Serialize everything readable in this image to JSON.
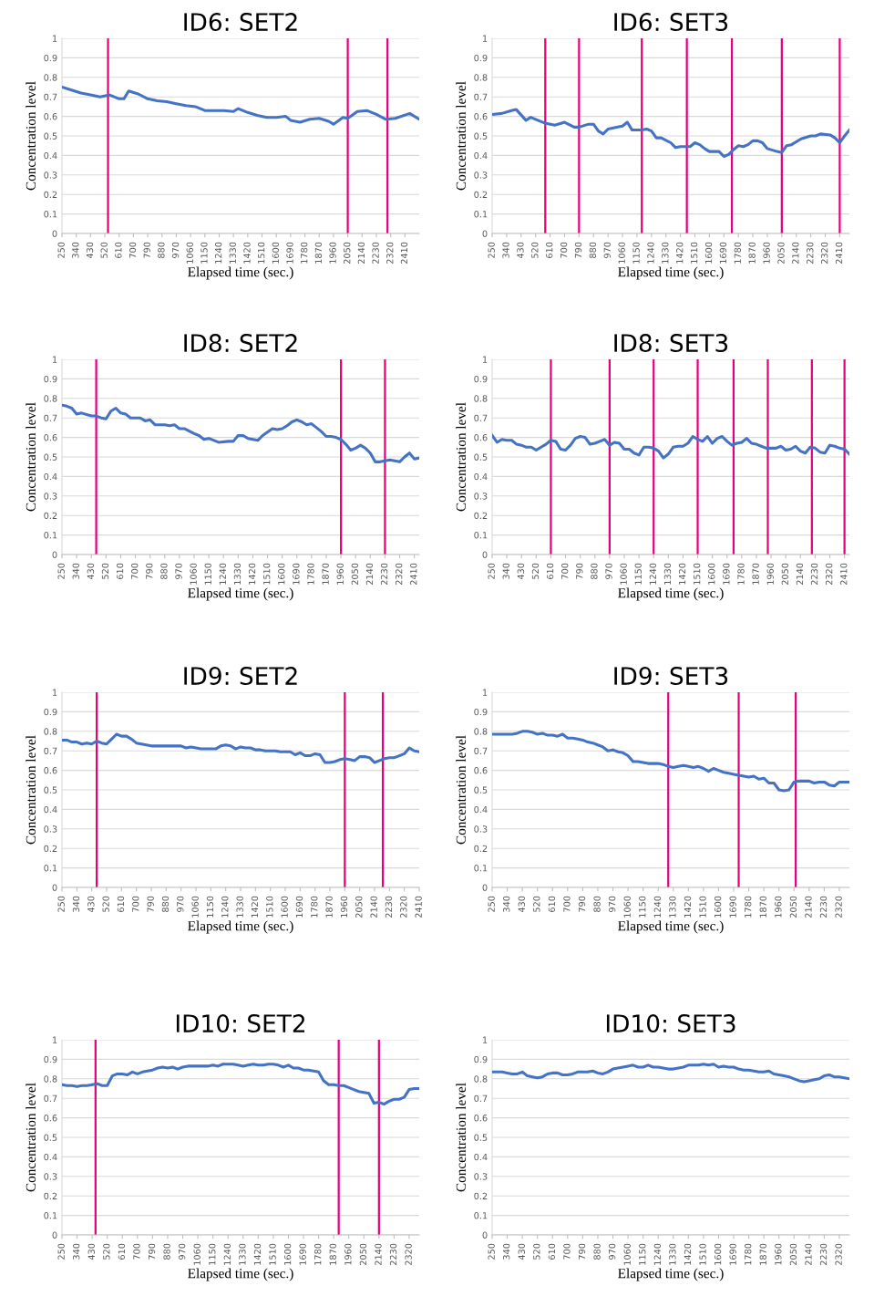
{
  "chart_data": [
    {
      "type": "line",
      "title": "ID6: SET2",
      "xlabel": "Elapsed time (sec.)",
      "ylabel": "Concentration level",
      "grid": "y",
      "xlim": [
        250,
        2500
      ],
      "ylim": [
        0,
        1
      ],
      "xticks": [
        250,
        340,
        430,
        520,
        610,
        700,
        790,
        880,
        970,
        1060,
        1150,
        1240,
        1330,
        1420,
        1510,
        1600,
        1690,
        1780,
        1870,
        1960,
        2050,
        2140,
        2230,
        2320,
        2410
      ],
      "yticks": [
        0,
        0.1,
        0.2,
        0.3,
        0.4,
        0.5,
        0.6,
        0.7,
        0.8,
        0.9,
        1
      ],
      "x": [
        250,
        310,
        370,
        430,
        490,
        550,
        610,
        640,
        670,
        730,
        790,
        850,
        910,
        970,
        1030,
        1090,
        1150,
        1210,
        1270,
        1330,
        1360,
        1420,
        1480,
        1540,
        1600,
        1660,
        1690,
        1750,
        1810,
        1870,
        1930,
        1960,
        2020,
        2050,
        2110,
        2170,
        2230,
        2290,
        2350,
        2440,
        2500
      ],
      "series": [
        {
          "color": "#4472c4",
          "values": [
            0.75,
            0.735,
            0.72,
            0.71,
            0.7,
            0.71,
            0.69,
            0.69,
            0.73,
            0.715,
            0.69,
            0.68,
            0.675,
            0.665,
            0.655,
            0.65,
            0.63,
            0.63,
            0.63,
            0.625,
            0.64,
            0.62,
            0.605,
            0.595,
            0.595,
            0.6,
            0.58,
            0.57,
            0.585,
            0.59,
            0.575,
            0.56,
            0.595,
            0.59,
            0.625,
            0.63,
            0.61,
            0.585,
            0.59,
            0.615,
            0.585
          ]
        }
      ],
      "ref_lines": [
        {
          "axis": "x",
          "value": 540,
          "color": "#e6007e"
        },
        {
          "axis": "x",
          "value": 2050,
          "color": "#e6007e"
        },
        {
          "axis": "x",
          "value": 2300,
          "color": "#e6007e"
        }
      ]
    },
    {
      "type": "line",
      "title": "ID6: SET3",
      "xlabel": "Elapsed time (sec.)",
      "ylabel": "Concentration level",
      "grid": "y",
      "xlim": [
        250,
        2470
      ],
      "ylim": [
        0,
        1
      ],
      "xticks": [
        250,
        340,
        430,
        520,
        610,
        700,
        790,
        880,
        970,
        1060,
        1150,
        1240,
        1330,
        1420,
        1510,
        1600,
        1690,
        1780,
        1870,
        1960,
        2050,
        2140,
        2230,
        2320,
        2410
      ],
      "yticks": [
        0,
        0.1,
        0.2,
        0.3,
        0.4,
        0.5,
        0.6,
        0.7,
        0.8,
        0.9,
        1
      ],
      "x": [
        250,
        310,
        370,
        400,
        460,
        490,
        520,
        580,
        640,
        700,
        760,
        790,
        850,
        880,
        910,
        940,
        970,
        1030,
        1060,
        1090,
        1120,
        1180,
        1210,
        1240,
        1270,
        1300,
        1360,
        1390,
        1420,
        1480,
        1510,
        1540,
        1570,
        1600,
        1660,
        1690,
        1720,
        1750,
        1780,
        1810,
        1840,
        1870,
        1900,
        1930,
        1960,
        2020,
        2050,
        2080,
        2110,
        2170,
        2230,
        2260,
        2290,
        2350,
        2380,
        2410,
        2440,
        2470
      ],
      "series": [
        {
          "color": "#4472c4",
          "values": [
            0.61,
            0.615,
            0.63,
            0.635,
            0.58,
            0.595,
            0.585,
            0.565,
            0.555,
            0.57,
            0.545,
            0.545,
            0.56,
            0.56,
            0.525,
            0.51,
            0.535,
            0.545,
            0.55,
            0.57,
            0.53,
            0.53,
            0.535,
            0.525,
            0.49,
            0.49,
            0.465,
            0.44,
            0.445,
            0.445,
            0.465,
            0.455,
            0.435,
            0.42,
            0.42,
            0.395,
            0.405,
            0.43,
            0.45,
            0.445,
            0.455,
            0.475,
            0.475,
            0.465,
            0.435,
            0.42,
            0.415,
            0.45,
            0.455,
            0.485,
            0.5,
            0.5,
            0.51,
            0.505,
            0.49,
            0.465,
            0.5,
            0.53
          ]
        }
      ],
      "ref_lines": [
        {
          "axis": "x",
          "value": 580,
          "color": "#e6007e"
        },
        {
          "axis": "x",
          "value": 790,
          "color": "#e6007e"
        },
        {
          "axis": "x",
          "value": 1180,
          "color": "#e6007e"
        },
        {
          "axis": "x",
          "value": 1460,
          "color": "#e6007e"
        },
        {
          "axis": "x",
          "value": 1740,
          "color": "#e6007e"
        },
        {
          "axis": "x",
          "value": 2050,
          "color": "#e6007e"
        },
        {
          "axis": "x",
          "value": 2410,
          "color": "#e6007e"
        }
      ]
    },
    {
      "type": "line",
      "title": "ID8: SET2",
      "xlabel": "Elapsed time (sec.)",
      "ylabel": "Concentration level",
      "grid": "y",
      "xlim": [
        250,
        2440
      ],
      "ylim": [
        0,
        1
      ],
      "xticks": [
        250,
        340,
        430,
        520,
        610,
        700,
        790,
        880,
        970,
        1060,
        1150,
        1240,
        1330,
        1420,
        1510,
        1600,
        1690,
        1780,
        1870,
        1960,
        2050,
        2140,
        2230,
        2320,
        2410
      ],
      "yticks": [
        0,
        0.1,
        0.2,
        0.3,
        0.4,
        0.5,
        0.6,
        0.7,
        0.8,
        0.9,
        1
      ],
      "x": [
        250,
        280,
        310,
        340,
        370,
        430,
        460,
        490,
        520,
        550,
        580,
        610,
        640,
        670,
        730,
        760,
        790,
        820,
        850,
        880,
        910,
        940,
        970,
        1000,
        1060,
        1090,
        1120,
        1150,
        1210,
        1270,
        1300,
        1330,
        1360,
        1390,
        1450,
        1480,
        1540,
        1570,
        1600,
        1630,
        1660,
        1690,
        1720,
        1750,
        1780,
        1810,
        1840,
        1870,
        1900,
        1930,
        1960,
        1990,
        2020,
        2050,
        2080,
        2110,
        2140,
        2170,
        2200,
        2230,
        2260,
        2320,
        2350,
        2380,
        2410,
        2440
      ],
      "series": [
        {
          "color": "#4472c4",
          "values": [
            0.765,
            0.76,
            0.75,
            0.72,
            0.725,
            0.71,
            0.71,
            0.7,
            0.695,
            0.735,
            0.75,
            0.725,
            0.72,
            0.7,
            0.7,
            0.685,
            0.69,
            0.665,
            0.665,
            0.665,
            0.66,
            0.665,
            0.645,
            0.645,
            0.62,
            0.61,
            0.59,
            0.595,
            0.575,
            0.58,
            0.58,
            0.61,
            0.61,
            0.595,
            0.585,
            0.61,
            0.645,
            0.64,
            0.645,
            0.66,
            0.68,
            0.69,
            0.68,
            0.665,
            0.67,
            0.65,
            0.63,
            0.605,
            0.605,
            0.6,
            0.59,
            0.565,
            0.535,
            0.545,
            0.56,
            0.545,
            0.52,
            0.475,
            0.475,
            0.48,
            0.485,
            0.475,
            0.5,
            0.52,
            0.49,
            0.495
          ]
        }
      ],
      "ref_lines": [
        {
          "axis": "x",
          "value": 460,
          "color": "#e6007e"
        },
        {
          "axis": "x",
          "value": 1960,
          "color": "#e6007e"
        },
        {
          "axis": "x",
          "value": 2230,
          "color": "#e6007e"
        }
      ]
    },
    {
      "type": "line",
      "title": "ID8: SET3",
      "xlabel": "Elapsed time (sec.)",
      "ylabel": "Concentration level",
      "grid": "y",
      "xlim": [
        250,
        2440
      ],
      "ylim": [
        0,
        1
      ],
      "xticks": [
        250,
        340,
        430,
        520,
        610,
        700,
        790,
        880,
        970,
        1060,
        1150,
        1240,
        1330,
        1420,
        1510,
        1600,
        1690,
        1780,
        1870,
        1960,
        2050,
        2140,
        2230,
        2320,
        2410
      ],
      "yticks": [
        0,
        0.1,
        0.2,
        0.3,
        0.4,
        0.5,
        0.6,
        0.7,
        0.8,
        0.9,
        1
      ],
      "x": [
        250,
        280,
        310,
        340,
        370,
        400,
        430,
        460,
        490,
        520,
        550,
        580,
        610,
        640,
        670,
        700,
        730,
        760,
        790,
        820,
        850,
        880,
        910,
        940,
        970,
        1000,
        1030,
        1060,
        1090,
        1120,
        1150,
        1180,
        1210,
        1240,
        1270,
        1300,
        1330,
        1360,
        1390,
        1420,
        1450,
        1480,
        1510,
        1540,
        1570,
        1600,
        1630,
        1660,
        1690,
        1720,
        1750,
        1780,
        1810,
        1840,
        1870,
        1900,
        1930,
        1960,
        1990,
        2020,
        2050,
        2080,
        2110,
        2140,
        2170,
        2200,
        2230,
        2260,
        2290,
        2320,
        2350,
        2380,
        2410,
        2440
      ],
      "series": [
        {
          "color": "#4472c4",
          "values": [
            0.61,
            0.575,
            0.59,
            0.585,
            0.585,
            0.565,
            0.56,
            0.55,
            0.55,
            0.535,
            0.55,
            0.565,
            0.585,
            0.58,
            0.54,
            0.535,
            0.56,
            0.595,
            0.605,
            0.6,
            0.565,
            0.57,
            0.58,
            0.59,
            0.56,
            0.575,
            0.57,
            0.54,
            0.54,
            0.52,
            0.51,
            0.55,
            0.55,
            0.545,
            0.53,
            0.495,
            0.515,
            0.55,
            0.555,
            0.555,
            0.57,
            0.605,
            0.59,
            0.58,
            0.605,
            0.57,
            0.595,
            0.605,
            0.58,
            0.56,
            0.57,
            0.575,
            0.595,
            0.57,
            0.565,
            0.555,
            0.545,
            0.545,
            0.545,
            0.555,
            0.535,
            0.54,
            0.555,
            0.53,
            0.52,
            0.55,
            0.545,
            0.525,
            0.52,
            0.56,
            0.555,
            0.545,
            0.54,
            0.515
          ]
        }
      ],
      "ref_lines": [
        {
          "axis": "x",
          "value": 610,
          "color": "#e6007e"
        },
        {
          "axis": "x",
          "value": 970,
          "color": "#e6007e"
        },
        {
          "axis": "x",
          "value": 1240,
          "color": "#e6007e"
        },
        {
          "axis": "x",
          "value": 1510,
          "color": "#e6007e"
        },
        {
          "axis": "x",
          "value": 1730,
          "color": "#e6007e"
        },
        {
          "axis": "x",
          "value": 1940,
          "color": "#e6007e"
        },
        {
          "axis": "x",
          "value": 2210,
          "color": "#e6007e"
        },
        {
          "axis": "x",
          "value": 2410,
          "color": "#e6007e"
        }
      ]
    },
    {
      "type": "line",
      "title": "ID9: SET2",
      "xlabel": "Elapsed time (sec.)",
      "ylabel": "Concentration level",
      "grid": "y",
      "xlim": [
        250,
        2410
      ],
      "ylim": [
        0,
        1
      ],
      "xticks": [
        250,
        340,
        430,
        520,
        610,
        700,
        790,
        880,
        970,
        1060,
        1150,
        1240,
        1330,
        1420,
        1510,
        1600,
        1690,
        1780,
        1870,
        1960,
        2050,
        2140,
        2230,
        2320,
        2410
      ],
      "yticks": [
        0,
        0.1,
        0.2,
        0.3,
        0.4,
        0.5,
        0.6,
        0.7,
        0.8,
        0.9,
        1
      ],
      "x": [
        250,
        280,
        310,
        340,
        370,
        400,
        430,
        460,
        490,
        520,
        550,
        580,
        610,
        640,
        670,
        700,
        730,
        760,
        790,
        850,
        910,
        970,
        1000,
        1030,
        1060,
        1090,
        1150,
        1180,
        1210,
        1240,
        1270,
        1300,
        1330,
        1360,
        1390,
        1420,
        1450,
        1480,
        1540,
        1570,
        1600,
        1630,
        1660,
        1690,
        1720,
        1750,
        1780,
        1810,
        1840,
        1870,
        1900,
        1930,
        1960,
        1990,
        2020,
        2050,
        2080,
        2110,
        2140,
        2170,
        2200,
        2230,
        2260,
        2290,
        2320,
        2350,
        2380,
        2410
      ],
      "series": [
        {
          "color": "#4472c4",
          "values": [
            0.755,
            0.755,
            0.745,
            0.745,
            0.735,
            0.74,
            0.735,
            0.75,
            0.74,
            0.735,
            0.76,
            0.785,
            0.775,
            0.775,
            0.76,
            0.74,
            0.735,
            0.73,
            0.725,
            0.725,
            0.725,
            0.725,
            0.715,
            0.72,
            0.715,
            0.71,
            0.71,
            0.71,
            0.725,
            0.73,
            0.725,
            0.71,
            0.72,
            0.715,
            0.715,
            0.705,
            0.705,
            0.7,
            0.7,
            0.695,
            0.695,
            0.695,
            0.68,
            0.69,
            0.675,
            0.675,
            0.685,
            0.68,
            0.64,
            0.64,
            0.645,
            0.655,
            0.66,
            0.655,
            0.65,
            0.67,
            0.67,
            0.665,
            0.64,
            0.65,
            0.66,
            0.665,
            0.665,
            0.675,
            0.685,
            0.715,
            0.7,
            0.695
          ]
        }
      ],
      "ref_lines": [
        {
          "axis": "x",
          "value": 460,
          "color": "#e6007e"
        },
        {
          "axis": "x",
          "value": 1960,
          "color": "#e6007e"
        },
        {
          "axis": "x",
          "value": 2190,
          "color": "#e6007e"
        }
      ]
    },
    {
      "type": "line",
      "title": "ID9: SET3",
      "xlabel": "Elapsed time (sec.)",
      "ylabel": "Concentration level",
      "grid": "y",
      "xlim": [
        250,
        2380
      ],
      "ylim": [
        0,
        1
      ],
      "xticks": [
        250,
        340,
        430,
        520,
        610,
        700,
        790,
        880,
        970,
        1060,
        1150,
        1240,
        1330,
        1420,
        1510,
        1600,
        1690,
        1780,
        1870,
        1960,
        2050,
        2140,
        2230,
        2320
      ],
      "yticks": [
        0,
        0.1,
        0.2,
        0.3,
        0.4,
        0.5,
        0.6,
        0.7,
        0.8,
        0.9,
        1
      ],
      "x": [
        250,
        310,
        370,
        400,
        430,
        460,
        490,
        520,
        550,
        580,
        610,
        640,
        670,
        700,
        730,
        760,
        790,
        820,
        850,
        880,
        910,
        940,
        970,
        1000,
        1030,
        1060,
        1090,
        1120,
        1150,
        1180,
        1240,
        1270,
        1300,
        1330,
        1360,
        1390,
        1420,
        1450,
        1480,
        1510,
        1540,
        1570,
        1600,
        1630,
        1660,
        1690,
        1720,
        1750,
        1780,
        1810,
        1840,
        1870,
        1900,
        1930,
        1960,
        1990,
        2020,
        2050,
        2080,
        2110,
        2140,
        2170,
        2200,
        2230,
        2260,
        2290,
        2320,
        2350,
        2380
      ],
      "series": [
        {
          "color": "#4472c4",
          "values": [
            0.785,
            0.785,
            0.785,
            0.79,
            0.8,
            0.8,
            0.795,
            0.785,
            0.79,
            0.78,
            0.78,
            0.775,
            0.785,
            0.765,
            0.765,
            0.76,
            0.755,
            0.745,
            0.74,
            0.73,
            0.72,
            0.7,
            0.705,
            0.695,
            0.69,
            0.675,
            0.645,
            0.645,
            0.64,
            0.635,
            0.635,
            0.63,
            0.62,
            0.615,
            0.62,
            0.625,
            0.62,
            0.615,
            0.62,
            0.61,
            0.595,
            0.61,
            0.6,
            0.59,
            0.585,
            0.58,
            0.575,
            0.57,
            0.565,
            0.57,
            0.555,
            0.56,
            0.535,
            0.535,
            0.5,
            0.495,
            0.5,
            0.54,
            0.545,
            0.545,
            0.545,
            0.535,
            0.54,
            0.54,
            0.525,
            0.52,
            0.54,
            0.54,
            0.54
          ]
        }
      ],
      "ref_lines": [
        {
          "axis": "x",
          "value": 1300,
          "color": "#e6007e"
        },
        {
          "axis": "x",
          "value": 1720,
          "color": "#e6007e"
        },
        {
          "axis": "x",
          "value": 2060,
          "color": "#e6007e"
        }
      ]
    },
    {
      "type": "line",
      "title": "ID10: SET2",
      "xlabel": "Elapsed time (sec.)",
      "ylabel": "Concentration level",
      "grid": "y",
      "xlim": [
        250,
        2380
      ],
      "ylim": [
        0,
        1
      ],
      "xticks": [
        250,
        340,
        430,
        520,
        610,
        700,
        790,
        880,
        970,
        1060,
        1150,
        1240,
        1330,
        1420,
        1510,
        1600,
        1690,
        1780,
        1870,
        1960,
        2050,
        2140,
        2230,
        2320
      ],
      "yticks": [
        0,
        0.1,
        0.2,
        0.3,
        0.4,
        0.5,
        0.6,
        0.7,
        0.8,
        0.9,
        1
      ],
      "x": [
        250,
        280,
        310,
        340,
        370,
        400,
        430,
        460,
        490,
        520,
        550,
        580,
        610,
        640,
        670,
        700,
        730,
        760,
        790,
        820,
        850,
        880,
        910,
        940,
        970,
        1000,
        1060,
        1120,
        1150,
        1180,
        1210,
        1270,
        1300,
        1330,
        1360,
        1390,
        1420,
        1450,
        1480,
        1510,
        1540,
        1570,
        1600,
        1630,
        1660,
        1690,
        1720,
        1750,
        1780,
        1810,
        1840,
        1870,
        1900,
        1930,
        1960,
        1990,
        2020,
        2050,
        2080,
        2110,
        2140,
        2170,
        2200,
        2230,
        2260,
        2290,
        2320,
        2350,
        2380
      ],
      "series": [
        {
          "color": "#4472c4",
          "values": [
            0.77,
            0.765,
            0.765,
            0.76,
            0.765,
            0.765,
            0.77,
            0.775,
            0.765,
            0.765,
            0.815,
            0.825,
            0.825,
            0.82,
            0.835,
            0.825,
            0.835,
            0.84,
            0.845,
            0.855,
            0.86,
            0.855,
            0.86,
            0.85,
            0.86,
            0.865,
            0.865,
            0.865,
            0.87,
            0.865,
            0.875,
            0.875,
            0.87,
            0.865,
            0.87,
            0.875,
            0.87,
            0.87,
            0.875,
            0.875,
            0.87,
            0.86,
            0.87,
            0.855,
            0.855,
            0.845,
            0.845,
            0.84,
            0.835,
            0.79,
            0.77,
            0.77,
            0.765,
            0.765,
            0.755,
            0.745,
            0.735,
            0.73,
            0.725,
            0.675,
            0.68,
            0.67,
            0.685,
            0.695,
            0.695,
            0.705,
            0.745,
            0.75,
            0.75
          ]
        }
      ],
      "ref_lines": [
        {
          "axis": "x",
          "value": 450,
          "color": "#e6007e"
        },
        {
          "axis": "x",
          "value": 1900,
          "color": "#e6007e"
        },
        {
          "axis": "x",
          "value": 2140,
          "color": "#e6007e"
        }
      ]
    },
    {
      "type": "line",
      "title": "ID10: SET3",
      "xlabel": "Elapsed time (sec.)",
      "ylabel": "Concentration level",
      "grid": "y",
      "xlim": [
        250,
        2380
      ],
      "ylim": [
        0,
        1
      ],
      "xticks": [
        250,
        340,
        430,
        520,
        610,
        700,
        790,
        880,
        970,
        1060,
        1150,
        1240,
        1330,
        1420,
        1510,
        1600,
        1690,
        1780,
        1870,
        1960,
        2050,
        2140,
        2230,
        2320
      ],
      "yticks": [
        0,
        0.1,
        0.2,
        0.3,
        0.4,
        0.5,
        0.6,
        0.7,
        0.8,
        0.9,
        1
      ],
      "x": [
        250,
        280,
        310,
        340,
        370,
        400,
        430,
        460,
        490,
        520,
        550,
        580,
        610,
        640,
        670,
        700,
        730,
        760,
        790,
        820,
        850,
        880,
        910,
        940,
        970,
        1000,
        1030,
        1060,
        1090,
        1120,
        1150,
        1180,
        1210,
        1240,
        1270,
        1300,
        1330,
        1360,
        1390,
        1420,
        1450,
        1480,
        1510,
        1540,
        1570,
        1600,
        1630,
        1660,
        1690,
        1720,
        1750,
        1780,
        1810,
        1840,
        1870,
        1900,
        1930,
        1960,
        1990,
        2020,
        2050,
        2080,
        2110,
        2140,
        2170,
        2200,
        2230,
        2260,
        2290,
        2320,
        2350,
        2380
      ],
      "series": [
        {
          "color": "#4472c4",
          "values": [
            0.835,
            0.835,
            0.835,
            0.83,
            0.825,
            0.825,
            0.835,
            0.815,
            0.81,
            0.805,
            0.81,
            0.825,
            0.83,
            0.83,
            0.82,
            0.82,
            0.825,
            0.835,
            0.835,
            0.835,
            0.84,
            0.83,
            0.825,
            0.835,
            0.85,
            0.855,
            0.86,
            0.865,
            0.87,
            0.86,
            0.86,
            0.87,
            0.86,
            0.86,
            0.855,
            0.85,
            0.85,
            0.855,
            0.86,
            0.87,
            0.87,
            0.87,
            0.875,
            0.87,
            0.875,
            0.86,
            0.865,
            0.86,
            0.86,
            0.85,
            0.845,
            0.845,
            0.84,
            0.835,
            0.835,
            0.84,
            0.825,
            0.82,
            0.815,
            0.81,
            0.8,
            0.79,
            0.785,
            0.79,
            0.795,
            0.8,
            0.815,
            0.82,
            0.81,
            0.81,
            0.805,
            0.8
          ]
        }
      ]
    }
  ]
}
